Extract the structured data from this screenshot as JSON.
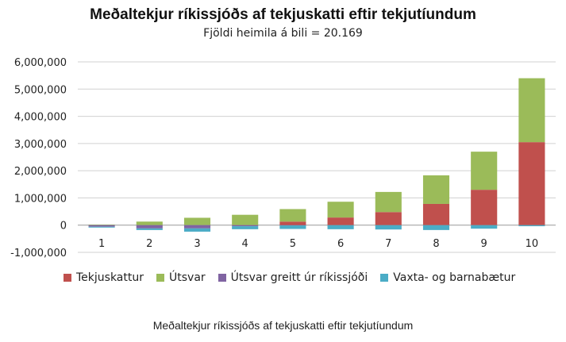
{
  "chart_data": {
    "type": "bar",
    "stacked": true,
    "title": "Meðaltekjur ríkissjóðs af tekjuskatti eftir tekjutíundum",
    "subtitle": "Fjöldi heimila á bili = 20.169",
    "caption": "Meðaltekjur ríkissjóðs af tekjuskatti eftir tekjutíundum",
    "categories": [
      "1",
      "2",
      "3",
      "4",
      "5",
      "6",
      "7",
      "8",
      "9",
      "10"
    ],
    "ylim": [
      -1000000,
      6000000
    ],
    "yticks": [
      {
        "v": 6000000,
        "label": "6,000,000"
      },
      {
        "v": 5000000,
        "label": "5,000,000"
      },
      {
        "v": 4000000,
        "label": "4,000,000"
      },
      {
        "v": 3000000,
        "label": "3,000,000"
      },
      {
        "v": 2000000,
        "label": "2,000,000"
      },
      {
        "v": 1000000,
        "label": "1,000,000"
      },
      {
        "v": 0,
        "label": "0"
      },
      {
        "v": -1000000,
        "label": "-1,000,000"
      }
    ],
    "grid": true,
    "legend_position": "bottom",
    "series": [
      {
        "name": "Tekjuskattur",
        "color": "#c0504d",
        "values": [
          0,
          0,
          0,
          0,
          130000,
          280000,
          480000,
          780000,
          1300000,
          3050000
        ]
      },
      {
        "name": "Útsvar",
        "color": "#9bbb59",
        "values": [
          20000,
          130000,
          270000,
          380000,
          460000,
          580000,
          740000,
          1050000,
          1400000,
          2350000
        ]
      },
      {
        "name": "Útsvar greitt úr ríkissjóði",
        "color": "#8064a2",
        "values": [
          -60000,
          -120000,
          -120000,
          -40000,
          -10000,
          0,
          0,
          0,
          0,
          0
        ]
      },
      {
        "name": "Vaxta- og barnabætur",
        "color": "#4bacc6",
        "values": [
          -30000,
          -60000,
          -120000,
          -110000,
          -130000,
          -150000,
          -160000,
          -180000,
          -130000,
          -40000
        ]
      }
    ]
  }
}
